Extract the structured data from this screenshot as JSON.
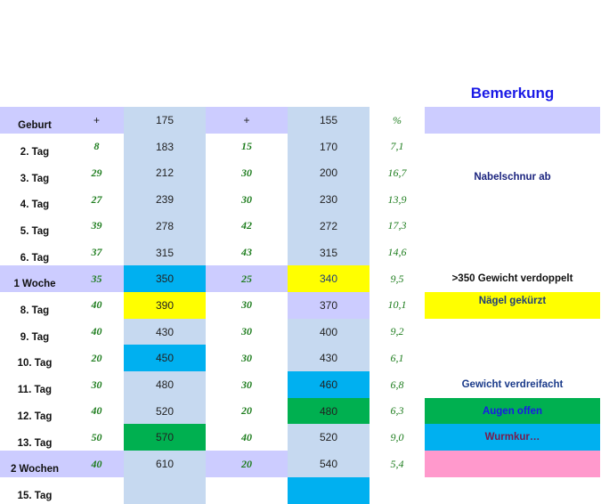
{
  "header": {
    "remarks_title": "Bemerkung",
    "col_b": "+",
    "col_c": "175",
    "col_d": "+",
    "col_e": "155",
    "col_f": "%",
    "first_label": "Geburt"
  },
  "rows": [
    {
      "label": "2. Tag",
      "b": "8",
      "c": "183",
      "d": "15",
      "e": "170",
      "f": "7,1",
      "note": ""
    },
    {
      "label": "3. Tag",
      "b": "29",
      "c": "212",
      "d": "30",
      "e": "200",
      "f": "16,7",
      "note": "Nabelschnur ab"
    },
    {
      "label": "4. Tag",
      "b": "27",
      "c": "239",
      "d": "30",
      "e": "230",
      "f": "13,9",
      "note": ""
    },
    {
      "label": "5. Tag",
      "b": "39",
      "c": "278",
      "d": "42",
      "e": "272",
      "f": "17,3",
      "note": ""
    },
    {
      "label": "6. Tag",
      "b": "37",
      "c": "315",
      "d": "43",
      "e": "315",
      "f": "14,6",
      "note": ""
    },
    {
      "label": "1 Woche",
      "b": "35",
      "c": "350",
      "d": "25",
      "e": "340",
      "f": "9,5",
      "note": ">350   Gewicht verdoppelt"
    },
    {
      "label": "8. Tag",
      "b": "40",
      "c": "390",
      "d": "30",
      "e": "370",
      "f": "10,1",
      "note": "Nägel gekürzt"
    },
    {
      "label": "9. Tag",
      "b": "40",
      "c": "430",
      "d": "30",
      "e": "400",
      "f": "9,2",
      "note": ""
    },
    {
      "label": "10. Tag",
      "b": "20",
      "c": "450",
      "d": "30",
      "e": "430",
      "f": "6,1",
      "note": ""
    },
    {
      "label": "11. Tag",
      "b": "30",
      "c": "480",
      "d": "30",
      "e": "460",
      "f": "6,8",
      "note": "Gewicht verdreifacht"
    },
    {
      "label": "12. Tag",
      "b": "40",
      "c": "520",
      "d": "20",
      "e": "480",
      "f": "6,3",
      "note": "Augen offen"
    },
    {
      "label": "13. Tag",
      "b": "50",
      "c": "570",
      "d": "40",
      "e": "520",
      "f": "9,0",
      "note": "Wurmkur…"
    },
    {
      "label": "2 Wochen",
      "b": "40",
      "c": "610",
      "d": "20",
      "e": "540",
      "f": "5,4",
      "note": ""
    },
    {
      "label": "15. Tag",
      "b": "",
      "c": "",
      "d": "",
      "e": "",
      "f": "",
      "note": ""
    }
  ],
  "colors": {
    "lavender": "#ccccff",
    "lightblue": "#c6d9f0",
    "cyan": "#00b0f0",
    "yellow": "#ffff00",
    "green": "#00b050",
    "pink": "#ff99cc",
    "title_blue": "#1a1ae6",
    "numeric_green": "#1e7d1e"
  },
  "highlights": {
    "r5": {
      "c": "cyan",
      "e": "yellow"
    },
    "r6": {
      "c": "yellow",
      "e": "lavender",
      "note": "yellow"
    },
    "r8": {
      "c": "cyan"
    },
    "r9": {
      "e": "cyan"
    },
    "r10": {
      "e": "green",
      "note": "green"
    },
    "r11": {
      "c": "green",
      "note": "cyan"
    },
    "r12": {
      "note": "pink"
    },
    "r13": {
      "e": "cyan"
    }
  }
}
